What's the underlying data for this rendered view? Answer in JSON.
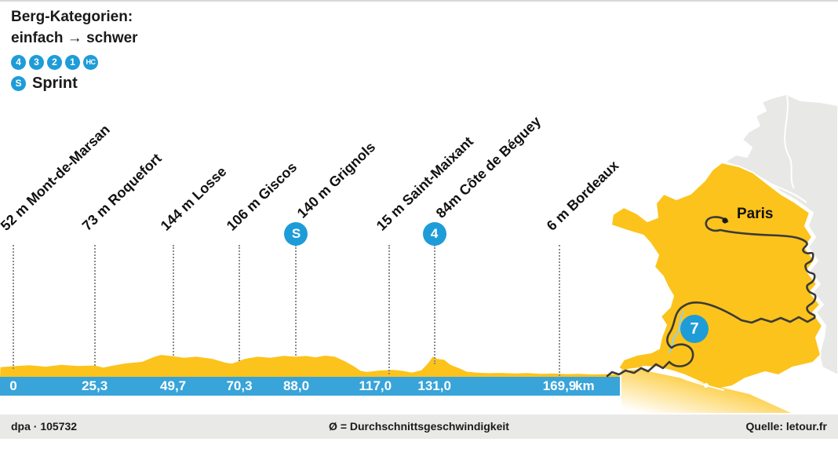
{
  "legend": {
    "title_line1": "Berg-Kategorien:",
    "title_line2": "einfach → schwer",
    "categories": [
      "4",
      "3",
      "2",
      "1",
      "HC"
    ],
    "sprint_badge": "S",
    "sprint_label": "Sprint"
  },
  "map": {
    "city_label": "Paris",
    "stage_number": "7"
  },
  "footer": {
    "credit": "dpa · 105732",
    "note": "Ø = Durchschnittsgeschwindigkeit",
    "source": "Quelle: letour.fr"
  },
  "chart_data": {
    "type": "area",
    "unit": "km",
    "total_km": 169.9,
    "xlim": [
      0,
      169.9
    ],
    "colors": {
      "profile": "#fcc31c",
      "bar": "#38a4d9",
      "badge": "#1e9cd8"
    },
    "waypoints": [
      {
        "km": 0,
        "km_label": "0",
        "elevation_m": 52,
        "name": "52 m Mont-de-Marsan"
      },
      {
        "km": 25.3,
        "km_label": "25,3",
        "elevation_m": 73,
        "name": "73 m Roquefort"
      },
      {
        "km": 49.7,
        "km_label": "49,7",
        "elevation_m": 144,
        "name": "144 m Losse"
      },
      {
        "km": 70.3,
        "km_label": "70,3",
        "elevation_m": 106,
        "name": "106 m Giscos"
      },
      {
        "km": 88.0,
        "km_label": "88,0",
        "elevation_m": 140,
        "name": "140 m Grignols",
        "badge": "S"
      },
      {
        "km": 117.0,
        "km_label": "117,0",
        "elevation_m": 15,
        "name": "15 m Saint-Maixant",
        "label_dx": -18
      },
      {
        "km": 131.0,
        "km_label": "131,0",
        "elevation_m": 84,
        "name": "84m Côte de Béguey",
        "badge": "4"
      },
      {
        "km": 169.9,
        "km_label": "169,9",
        "elevation_m": 6,
        "name": "6 m Bordeaux"
      }
    ],
    "profile_silhouette": [
      [
        -4,
        65
      ],
      [
        0,
        71
      ],
      [
        5,
        78
      ],
      [
        10,
        68
      ],
      [
        15,
        80
      ],
      [
        20,
        72
      ],
      [
        25.3,
        76
      ],
      [
        28,
        62
      ],
      [
        31,
        75
      ],
      [
        35,
        90
      ],
      [
        40,
        100
      ],
      [
        44,
        135
      ],
      [
        46,
        147
      ],
      [
        49.7,
        138
      ],
      [
        53,
        128
      ],
      [
        57,
        135
      ],
      [
        62,
        120
      ],
      [
        66,
        95
      ],
      [
        68,
        88
      ],
      [
        72,
        120
      ],
      [
        76,
        135
      ],
      [
        80,
        128
      ],
      [
        84,
        140
      ],
      [
        88,
        135
      ],
      [
        91,
        140
      ],
      [
        94,
        130
      ],
      [
        97,
        142
      ],
      [
        100,
        135
      ],
      [
        103,
        106
      ],
      [
        106,
        70
      ],
      [
        108,
        40
      ],
      [
        110,
        32
      ],
      [
        114,
        42
      ],
      [
        118,
        47
      ],
      [
        121,
        40
      ],
      [
        124,
        28
      ],
      [
        127,
        45
      ],
      [
        129,
        90
      ],
      [
        130.5,
        135
      ],
      [
        132,
        120
      ],
      [
        134,
        115
      ],
      [
        136,
        80
      ],
      [
        139,
        55
      ],
      [
        141,
        35
      ],
      [
        144,
        28
      ],
      [
        148,
        24
      ],
      [
        152,
        26
      ],
      [
        156,
        22
      ],
      [
        160,
        25
      ],
      [
        164,
        20
      ],
      [
        168,
        22
      ],
      [
        172,
        18
      ],
      [
        176,
        20
      ],
      [
        180,
        16
      ],
      [
        184,
        18
      ],
      [
        188,
        15
      ]
    ]
  }
}
